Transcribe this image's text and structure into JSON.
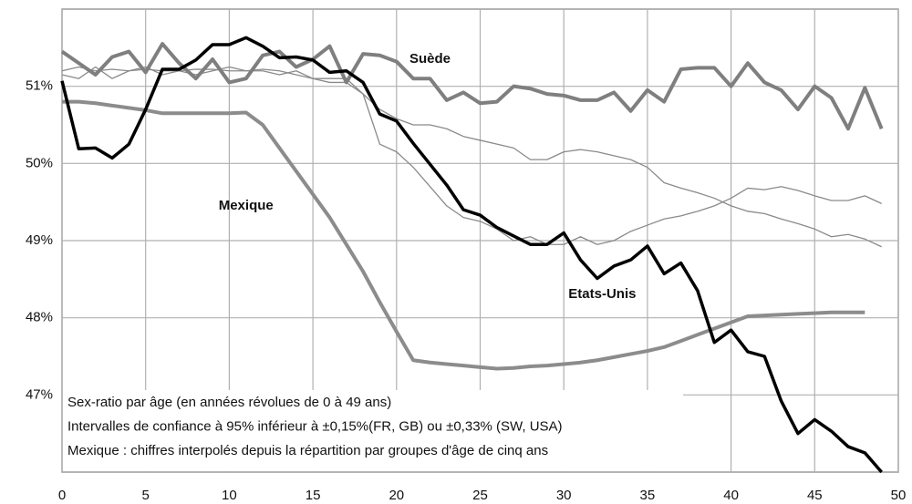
{
  "chart_data": {
    "type": "line",
    "annotations": [
      {
        "text": "Suède",
        "x": 22,
        "y": 51.35
      },
      {
        "text": "Mexique",
        "x": 11,
        "y": 49.45
      },
      {
        "text": "Etats-Unis",
        "x": 32.3,
        "y": 48.3
      }
    ],
    "notes": [
      "Sex-ratio par âge (en années révolues de 0 à 49 ans)",
      "Intervalles de confiance à 95% inférieur à ±0,15%(FR, GB) ou ±0,33% (SW, USA)",
      "Mexique : chiffres interpolés depuis la répartition par groupes d'âge de cinq ans"
    ],
    "x": [
      0,
      1,
      2,
      3,
      4,
      5,
      6,
      7,
      8,
      9,
      10,
      11,
      12,
      13,
      14,
      15,
      16,
      17,
      18,
      19,
      20,
      21,
      22,
      23,
      24,
      25,
      26,
      27,
      28,
      29,
      30,
      31,
      32,
      33,
      34,
      35,
      36,
      37,
      38,
      39,
      40,
      41,
      42,
      43,
      44,
      45,
      46,
      47,
      48,
      49
    ],
    "xlim": [
      0,
      50
    ],
    "xticks": [
      0,
      5,
      10,
      15,
      20,
      25,
      30,
      35,
      40,
      45,
      50
    ],
    "ylim": [
      46,
      52
    ],
    "yticks": [
      {
        "value": 47,
        "label": "47%"
      },
      {
        "value": 48,
        "label": "48%"
      },
      {
        "value": 49,
        "label": "49%"
      },
      {
        "value": 50,
        "label": "50%"
      },
      {
        "value": 51,
        "label": "51%"
      }
    ],
    "grid": true,
    "series": [
      {
        "color": "#8a8a8a",
        "width": 1.3,
        "values": [
          51.2,
          51.25,
          51.2,
          51.22,
          51.2,
          51.22,
          51.2,
          51.2,
          51.22,
          51.22,
          51.2,
          51.2,
          51.22,
          51.2,
          51.15,
          51.1,
          51.05,
          51.05,
          50.9,
          50.7,
          50.58,
          50.5,
          50.5,
          50.45,
          50.35,
          50.3,
          50.25,
          50.2,
          50.05,
          50.05,
          50.15,
          50.18,
          50.15,
          50.1,
          50.05,
          49.95,
          49.75,
          49.68,
          49.62,
          49.55,
          49.45,
          49.38,
          49.35,
          49.28,
          49.22,
          49.15,
          49.05,
          49.08,
          49.02,
          48.92
        ]
      },
      {
        "color": "#8a8a8a",
        "width": 1.3,
        "values": [
          51.15,
          51.1,
          51.25,
          51.1,
          51.2,
          51.25,
          51.15,
          51.2,
          51.15,
          51.2,
          51.25,
          51.2,
          51.2,
          51.15,
          51.2,
          51.1,
          51.1,
          51.1,
          50.9,
          50.25,
          50.15,
          49.95,
          49.7,
          49.45,
          49.3,
          49.25,
          49.15,
          49.0,
          49.05,
          48.95,
          48.95,
          49.05,
          48.95,
          49.0,
          49.12,
          49.2,
          49.28,
          49.32,
          49.38,
          49.45,
          49.55,
          49.68,
          49.66,
          49.7,
          49.65,
          49.58,
          49.52,
          49.52,
          49.58,
          49.48
        ]
      },
      {
        "name": "Suède",
        "color": "#7f7f7f",
        "width": 4,
        "values": [
          51.45,
          51.3,
          51.15,
          51.38,
          51.45,
          51.18,
          51.55,
          51.3,
          51.1,
          51.35,
          51.05,
          51.1,
          51.4,
          51.45,
          51.25,
          51.35,
          51.52,
          51.05,
          51.42,
          51.4,
          51.32,
          51.1,
          51.1,
          50.82,
          50.92,
          50.78,
          50.8,
          51.0,
          50.97,
          50.9,
          50.88,
          50.82,
          50.82,
          50.92,
          50.68,
          50.95,
          50.8,
          51.22,
          51.24,
          51.24,
          51.0,
          51.3,
          51.05,
          50.95,
          50.7,
          51.0,
          50.85,
          50.45,
          50.98,
          50.45
        ]
      },
      {
        "name": "Mexique",
        "color": "#8c8c8c",
        "width": 4,
        "values": [
          50.8,
          50.8,
          50.78,
          50.75,
          50.72,
          50.69,
          50.65,
          50.65,
          50.65,
          50.65,
          50.65,
          50.66,
          50.5,
          50.2,
          49.9,
          49.6,
          49.3,
          48.95,
          48.6,
          48.2,
          47.82,
          47.45,
          47.42,
          47.4,
          47.38,
          47.36,
          47.34,
          47.35,
          47.37,
          47.38,
          47.4,
          47.42,
          47.45,
          47.49,
          47.53,
          47.57,
          47.62,
          47.7,
          47.78,
          47.86,
          47.94,
          48.02,
          48.03,
          48.04,
          48.05,
          48.06,
          48.07,
          48.07,
          48.07,
          null
        ]
      },
      {
        "name": "Etats-Unis",
        "color": "#000000",
        "width": 3.5,
        "values": [
          51.07,
          50.19,
          50.2,
          50.07,
          50.25,
          50.7,
          51.22,
          51.22,
          51.34,
          51.54,
          51.54,
          51.63,
          51.52,
          51.37,
          51.38,
          51.34,
          51.18,
          51.2,
          51.05,
          50.64,
          50.55,
          50.26,
          49.99,
          49.72,
          49.4,
          49.33,
          49.17,
          49.06,
          48.95,
          48.95,
          49.1,
          48.75,
          48.51,
          48.67,
          48.75,
          48.93,
          48.57,
          48.71,
          48.35,
          47.68,
          47.84,
          47.56,
          47.5,
          46.92,
          46.5,
          46.68,
          46.53,
          46.33,
          46.25,
          46.0
        ]
      }
    ]
  }
}
